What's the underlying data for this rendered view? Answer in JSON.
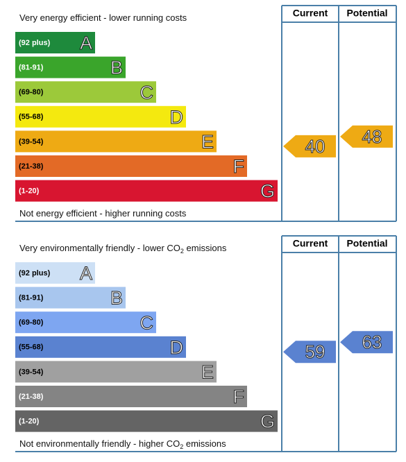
{
  "chart_data": [
    {
      "type": "energy_rating",
      "top_label": [
        "Very energy efficient - lower running costs"
      ],
      "bottom_label": [
        "Not energy efficient - higher running costs"
      ],
      "columns": [
        "Current",
        "Potential"
      ],
      "bands": [
        {
          "range": "(92 plus)",
          "letter": "A",
          "color": "#1e8a3c",
          "text_color": "#ffffff"
        },
        {
          "range": "(81-91)",
          "letter": "B",
          "color": "#3aa52b",
          "text_color": "#ffffff"
        },
        {
          "range": "(69-80)",
          "letter": "C",
          "color": "#9cc93a",
          "text_color": "#000000"
        },
        {
          "range": "(55-68)",
          "letter": "D",
          "color": "#f4e90f",
          "text_color": "#000000"
        },
        {
          "range": "(39-54)",
          "letter": "E",
          "color": "#eeaa14",
          "text_color": "#000000"
        },
        {
          "range": "(21-38)",
          "letter": "F",
          "color": "#e36a26",
          "text_color": "#000000"
        },
        {
          "range": "(1-20)",
          "letter": "G",
          "color": "#d81530",
          "text_color": "#ffffff"
        }
      ],
      "values": [
        40,
        48
      ]
    },
    {
      "type": "energy_rating",
      "top_label": [
        "Very environmentally friendly - lower CO",
        "2",
        " emissions"
      ],
      "bottom_label": [
        "Not environmentally friendly - higher CO",
        "2",
        " emissions"
      ],
      "columns": [
        "Current",
        "Potential"
      ],
      "bands": [
        {
          "range": "(92 plus)",
          "letter": "A",
          "color": "#cde0f5",
          "text_color": "#000000"
        },
        {
          "range": "(81-91)",
          "letter": "B",
          "color": "#a8c6ee",
          "text_color": "#000000"
        },
        {
          "range": "(69-80)",
          "letter": "C",
          "color": "#7ea6f1",
          "text_color": "#000000"
        },
        {
          "range": "(55-68)",
          "letter": "D",
          "color": "#5a82d0",
          "text_color": "#000000"
        },
        {
          "range": "(39-54)",
          "letter": "E",
          "color": "#a0a0a0",
          "text_color": "#000000"
        },
        {
          "range": "(21-38)",
          "letter": "F",
          "color": "#848484",
          "text_color": "#ffffff"
        },
        {
          "range": "(1-20)",
          "letter": "G",
          "color": "#646464",
          "text_color": "#ffffff"
        }
      ],
      "values": [
        59,
        63
      ]
    }
  ]
}
